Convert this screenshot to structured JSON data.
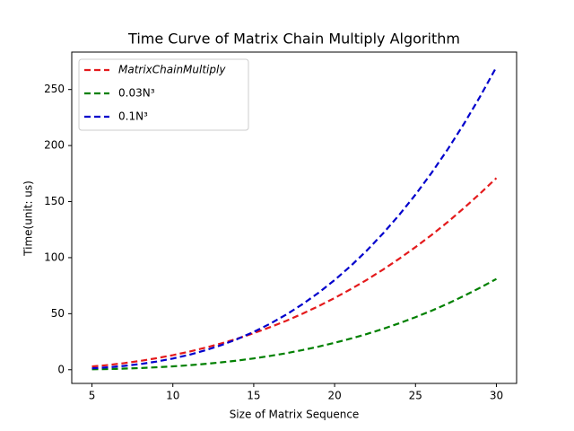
{
  "chart_data": {
    "type": "line",
    "title": "Time Curve of Matrix Chain Multiply Algorithm",
    "x_label": "Size of Matrix Sequence",
    "y_label": "Time(unit: us)",
    "x": [
      5,
      6,
      7,
      8,
      9,
      10,
      11,
      12,
      13,
      14,
      15,
      16,
      17,
      18,
      19,
      20,
      21,
      22,
      23,
      24,
      25,
      26,
      27,
      28,
      29,
      30
    ],
    "series": [
      {
        "name": "MatrixChainMultiply",
        "color": "#e41a1c",
        "values": [
          2.9,
          4.2,
          5.9,
          7.9,
          10.3,
          13.0,
          16.1,
          19.6,
          23.5,
          27.8,
          32.6,
          37.9,
          43.6,
          49.9,
          56.7,
          64.0,
          71.9,
          80.3,
          89.4,
          99.1,
          109.4,
          120.3,
          131.9,
          144.3,
          157.3,
          171.0
        ]
      },
      {
        "name": "0.03N³",
        "color": "#008000",
        "values": [
          0.4,
          0.6,
          1.0,
          1.5,
          2.2,
          3.0,
          4.0,
          5.2,
          6.6,
          8.2,
          10.1,
          12.3,
          14.7,
          17.5,
          20.6,
          24.0,
          27.8,
          31.9,
          36.5,
          41.5,
          46.9,
          52.7,
          59.0,
          65.9,
          73.2,
          81.0
        ]
      },
      {
        "name": "0.1N³",
        "color": "#0000cc",
        "values": [
          1.25,
          2.16,
          3.43,
          5.12,
          7.29,
          10,
          13.31,
          17.28,
          21.97,
          27.44,
          33.75,
          40.96,
          49.13,
          58.32,
          68.59,
          80,
          92.61,
          106.48,
          121.67,
          138.24,
          156.25,
          175.76,
          196.83,
          219.52,
          243.89,
          270
        ]
      }
    ],
    "xlim": [
      3.75,
      31.25
    ],
    "ylim": [
      -12.2,
      283.4
    ],
    "xticks": [
      5,
      10,
      15,
      20,
      25,
      30
    ],
    "yticks": [
      0,
      50,
      100,
      150,
      200,
      250
    ],
    "legend": "upper left"
  }
}
